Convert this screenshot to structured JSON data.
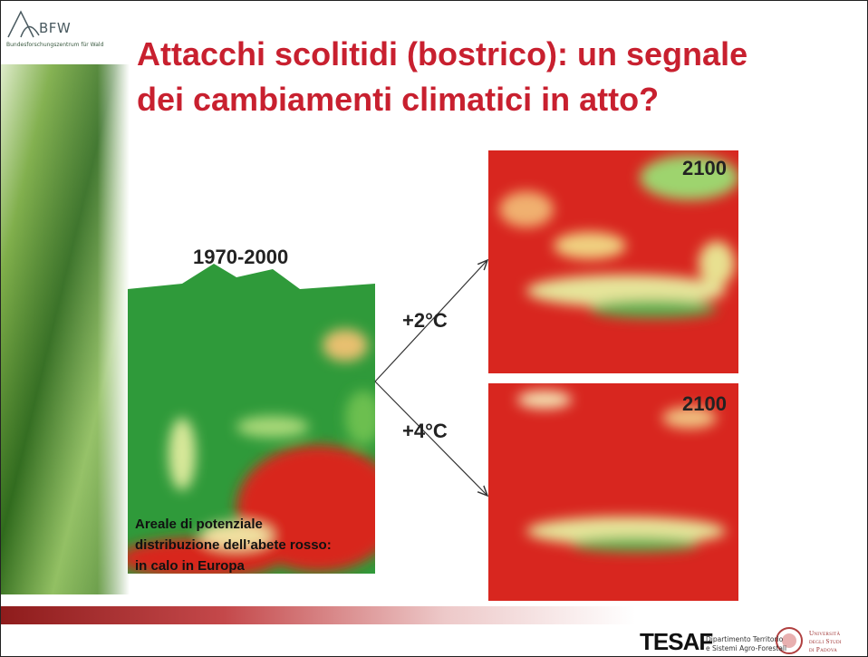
{
  "logo": {
    "name": "BFW",
    "subtitle": "Bundesforschungszentrum für Wald"
  },
  "title": [
    "Attacchi scolitidi (bostrico): un segnale",
    "dei cambiamenti climatici in atto?"
  ],
  "maps": [
    {
      "label": "1970-2000"
    },
    {
      "label": "2100",
      "scenario": "+2°C"
    },
    {
      "label": "2100",
      "scenario": "+4°C"
    }
  ],
  "caption": [
    "Areale di potenziale",
    "distribuzione dell’abete rosso:",
    "in calo in Europa"
  ],
  "footer": {
    "tesaf": "TESAF",
    "tesaf_subtitle": [
      "Dipartimento Territorio",
      "e Sistemi Agro-Forestali"
    ],
    "university": [
      "Università",
      "degli Studi",
      "di Padova"
    ]
  }
}
